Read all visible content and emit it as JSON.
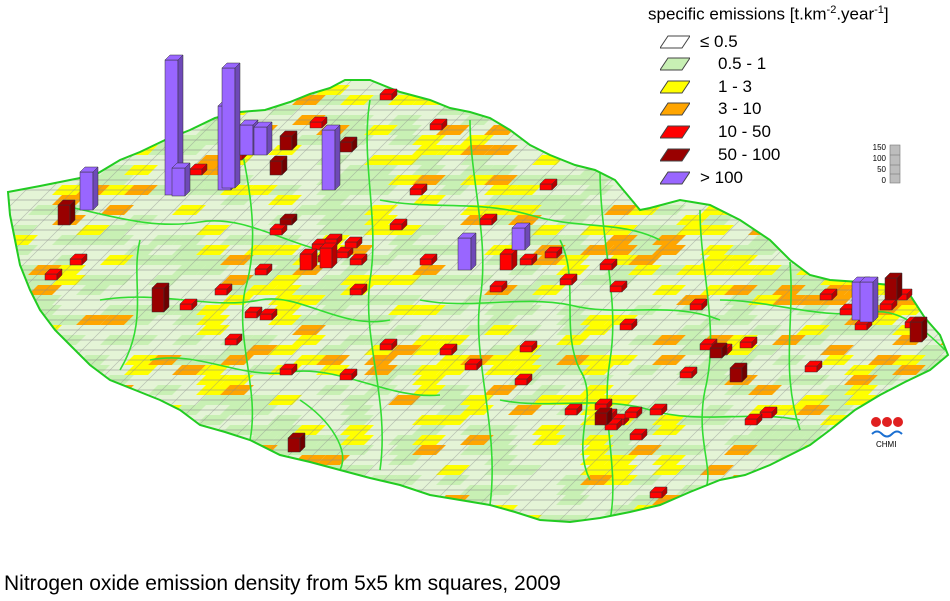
{
  "legend": {
    "title_text": "specific emissions [t.km",
    "title_sup1": "-2",
    "title_mid": ".year",
    "title_sup2": "-1",
    "title_end": "]",
    "items": [
      {
        "label": "≤ 0.5",
        "color": "#ffffff"
      },
      {
        "label": "0.5 - 1",
        "color": "#c8f0b4"
      },
      {
        "label": "1 - 3",
        "color": "#ffff00"
      },
      {
        "label": "3 - 10",
        "color": "#ffa500"
      },
      {
        "label": "10 - 50",
        "color": "#ff0000"
      },
      {
        "label": "50 - 100",
        "color": "#990000"
      },
      {
        "label": "> 100",
        "color": "#9966ff"
      }
    ]
  },
  "height_scale": {
    "ticks": [
      "150",
      "100",
      "50",
      "0"
    ]
  },
  "logo": {
    "text": "CHMI"
  },
  "caption": "Nitrogen oxide emission density from 5x5 km squares, 2009",
  "colors": {
    "border_green": "#33dd33",
    "grid_outline": "#888888"
  }
}
